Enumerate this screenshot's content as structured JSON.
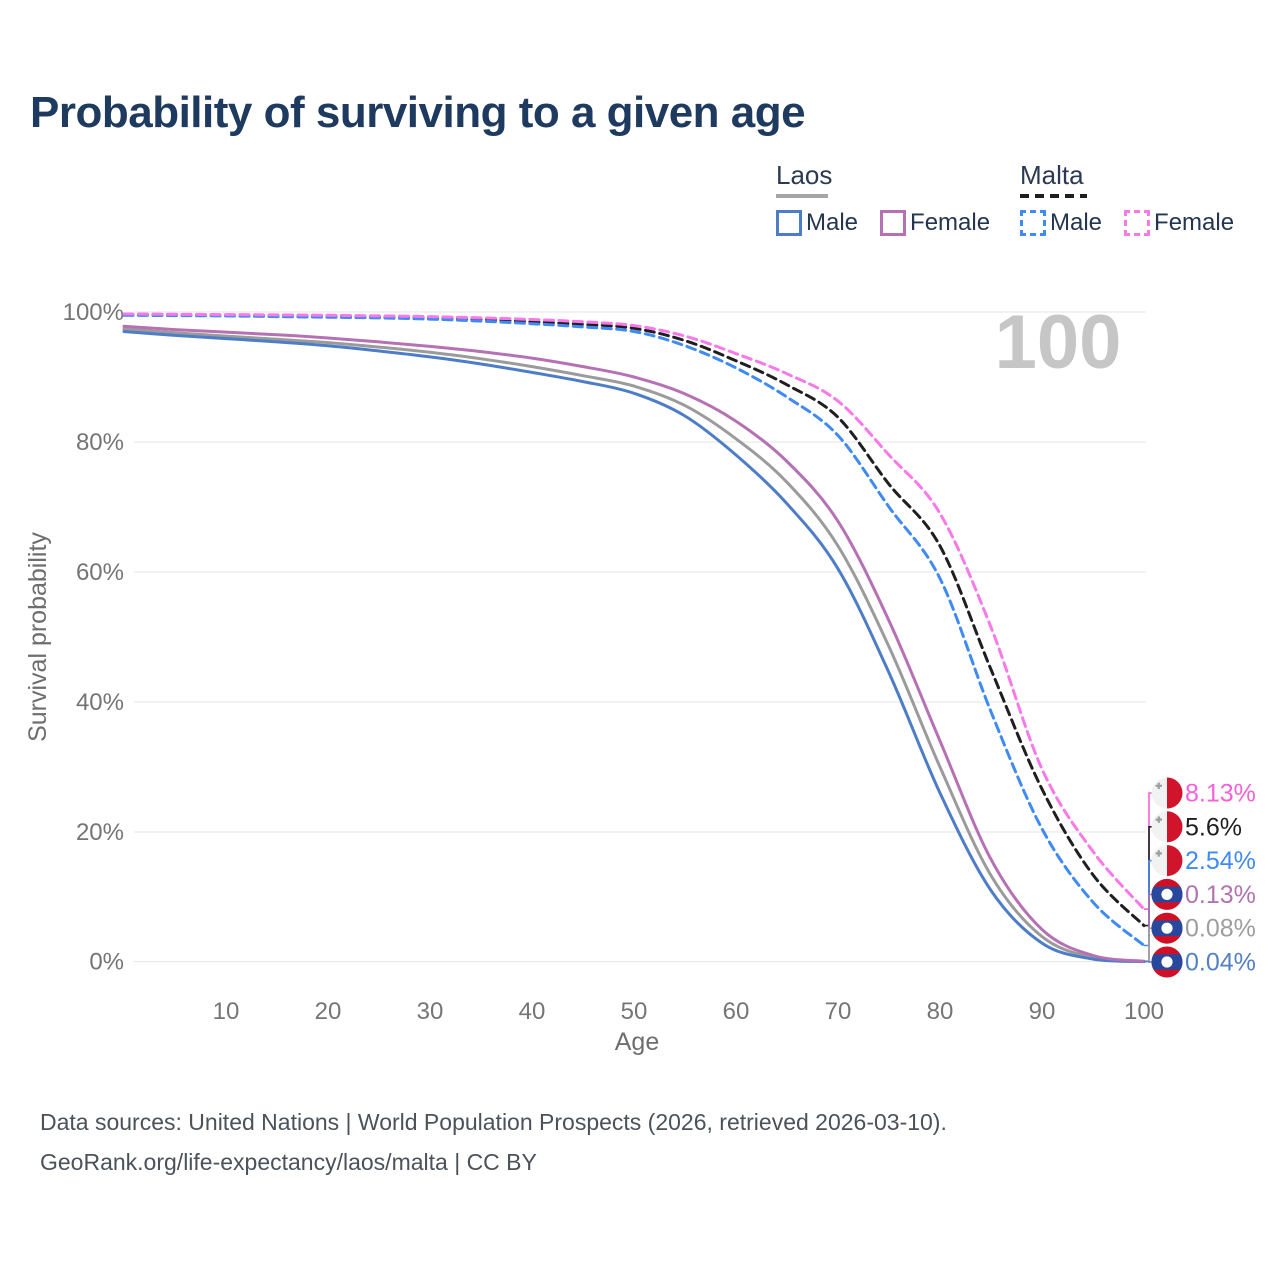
{
  "page": {
    "title": "Probability of surviving to a given age",
    "watermark": "100",
    "footer_line1": "Data sources: United Nations | World Population Prospects (2026, retrieved 2026-03-10).",
    "footer_line2": "GeoRank.org/life-expectancy/laos/malta | CC BY"
  },
  "legend": {
    "groups": [
      {
        "title": "Laos",
        "line_style": "solid",
        "underline_color": "#a6a6a6",
        "items": [
          {
            "label": "Male",
            "color": "#4e7dc7"
          },
          {
            "label": "Female",
            "color": "#b671b5"
          }
        ]
      },
      {
        "title": "Malta",
        "line_style": "dashed",
        "underline_color": "#1f1f1f",
        "items": [
          {
            "label": "Male",
            "color": "#3f8af3"
          },
          {
            "label": "Female",
            "color": "#f879e8"
          }
        ]
      }
    ]
  },
  "flags": {
    "malta": {
      "white": "#f2f2f2",
      "red": "#cf142b",
      "cross": "#9b9fa3"
    },
    "laos": {
      "red": "#ce1126",
      "blue": "#27489c",
      "circle": "#ffffff"
    }
  },
  "chart_data": {
    "type": "line",
    "title": "Probability of surviving to a given age",
    "xlabel": "Age",
    "ylabel": "Survival probability",
    "xlim": [
      0,
      100
    ],
    "ylim": [
      0,
      100
    ],
    "grid": "horizontal-only",
    "legend_position": "top-right",
    "x_ticks": [
      10,
      20,
      30,
      40,
      50,
      60,
      70,
      80,
      90,
      100
    ],
    "y_ticks": [
      {
        "value": 100,
        "label": "100%"
      },
      {
        "value": 80,
        "label": "80%"
      },
      {
        "value": 60,
        "label": "60%"
      },
      {
        "value": 40,
        "label": "40%"
      },
      {
        "value": 20,
        "label": "20%"
      },
      {
        "value": 0,
        "label": "0%"
      }
    ],
    "x": [
      0,
      5,
      10,
      15,
      20,
      25,
      30,
      35,
      40,
      45,
      50,
      55,
      60,
      65,
      70,
      75,
      80,
      85,
      90,
      95,
      100
    ],
    "series": [
      {
        "id": "laos-both",
        "country": "Laos",
        "sex": "Both sexes",
        "in_legend": false,
        "color": "#9b9b9b",
        "dash": false,
        "end_label": "0.08%",
        "label_color": "#9e9e9e",
        "values": [
          97.4,
          96.8,
          96.3,
          95.8,
          95.3,
          94.6,
          93.8,
          92.8,
          91.6,
          90.2,
          88.6,
          85.6,
          80.5,
          73.8,
          64.0,
          48.5,
          30.0,
          13.3,
          3.9,
          0.7,
          0.08
        ]
      },
      {
        "id": "laos-male",
        "country": "Laos",
        "sex": "Male",
        "in_legend": true,
        "color": "#4e7dc7",
        "dash": false,
        "end_label": "0.04%",
        "label_color": "#5580c4",
        "values": [
          97.0,
          96.4,
          95.9,
          95.4,
          94.8,
          94.0,
          93.1,
          92.0,
          90.7,
          89.3,
          87.5,
          84.0,
          78.0,
          70.5,
          60.5,
          44.5,
          26.0,
          11.0,
          2.9,
          0.45,
          0.04
        ]
      },
      {
        "id": "laos-female",
        "country": "Laos",
        "sex": "Female",
        "in_legend": true,
        "color": "#b671b5",
        "dash": false,
        "end_label": "0.13%",
        "label_color": "#b274ae",
        "values": [
          97.8,
          97.3,
          96.9,
          96.5,
          96.0,
          95.4,
          94.7,
          93.9,
          92.9,
          91.6,
          90.0,
          87.4,
          83.2,
          77.0,
          67.8,
          52.5,
          34.0,
          15.8,
          5.0,
          1.0,
          0.13
        ]
      },
      {
        "id": "malta-both",
        "country": "Malta",
        "sex": "Both sexes",
        "in_legend": false,
        "color": "#1f1f1f",
        "dash": true,
        "end_label": "5.6%",
        "label_color": "#1f1f1f",
        "values": [
          99.6,
          99.55,
          99.5,
          99.4,
          99.3,
          99.2,
          99.05,
          98.85,
          98.5,
          98.1,
          97.5,
          95.6,
          92.5,
          88.8,
          83.8,
          73.5,
          64.0,
          45.0,
          26.6,
          13.4,
          5.6
        ]
      },
      {
        "id": "malta-male",
        "country": "Malta",
        "sex": "Male",
        "in_legend": true,
        "color": "#3f8af3",
        "dash": true,
        "end_label": "2.54%",
        "label_color": "#3f8af3",
        "values": [
          99.5,
          99.45,
          99.4,
          99.3,
          99.2,
          99.1,
          98.9,
          98.6,
          98.2,
          97.7,
          97.0,
          94.8,
          91.4,
          86.9,
          81.0,
          70.0,
          59.0,
          38.5,
          20.5,
          9.2,
          2.54
        ]
      },
      {
        "id": "malta-female",
        "country": "Malta",
        "sex": "Female",
        "in_legend": true,
        "color": "#f879e8",
        "dash": true,
        "end_label": "8.13%",
        "label_color": "#f661d8",
        "values": [
          99.7,
          99.65,
          99.6,
          99.55,
          99.5,
          99.4,
          99.3,
          99.1,
          98.85,
          98.5,
          97.9,
          96.3,
          93.6,
          90.5,
          86.3,
          78.0,
          69.0,
          51.5,
          29.7,
          17.0,
          8.13
        ]
      }
    ]
  }
}
